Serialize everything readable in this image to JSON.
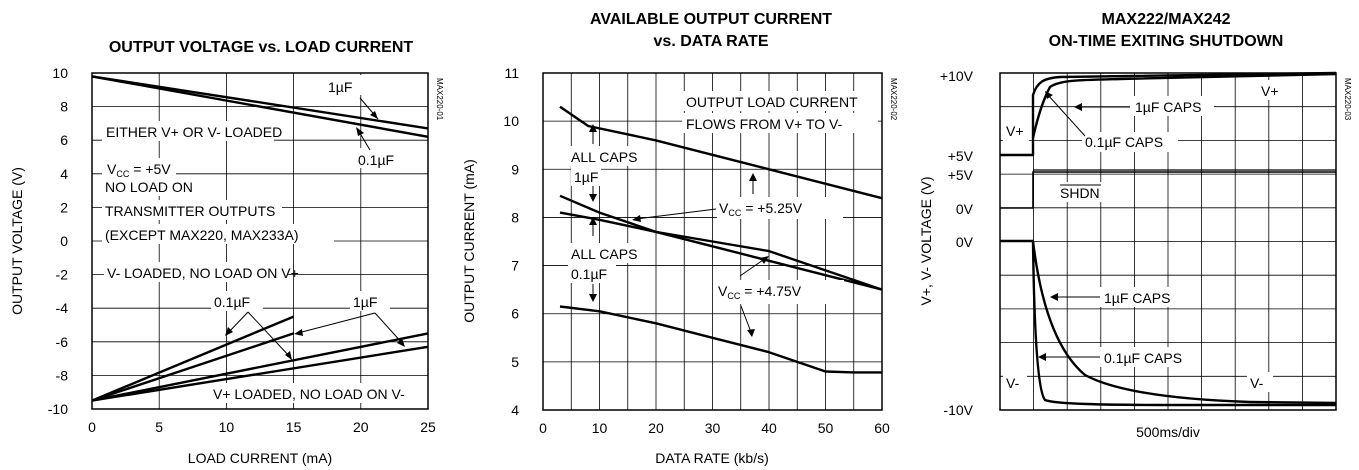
{
  "chart_data": [
    {
      "type": "line",
      "title": "OUTPUT VOLTAGE vs. LOAD CURRENT",
      "code": "MAX220-01",
      "xlabel": "LOAD CURRENT (mA)",
      "ylabel": "OUTPUT VOLTAGE (V)",
      "xlim": [
        0,
        25
      ],
      "ylim": [
        -10,
        10
      ],
      "x_ticks": [
        "0",
        "5",
        "10",
        "15",
        "20",
        "25"
      ],
      "y_ticks": [
        "10",
        "8",
        "6",
        "4",
        "2",
        "0",
        "-2",
        "-4",
        "-6",
        "-8",
        "-10"
      ],
      "grid": true,
      "series": [
        {
          "x": [
            0,
            25
          ],
          "y": [
            9.8,
            6.7
          ]
        },
        {
          "x": [
            0,
            25
          ],
          "y": [
            9.8,
            6.2
          ]
        },
        {
          "x": [
            0,
            15
          ],
          "y": [
            -9.5,
            -4.5
          ]
        },
        {
          "x": [
            0,
            15
          ],
          "y": [
            -9.5,
            -5.5
          ]
        },
        {
          "x": [
            0,
            25
          ],
          "y": [
            -9.5,
            -5.5
          ]
        },
        {
          "x": [
            0,
            25
          ],
          "y": [
            -9.5,
            -6.3
          ]
        }
      ],
      "annotations": {
        "cap1": "1µF",
        "cap2": "0.1µF",
        "either": "EITHER V+ OR V- LOADED",
        "vcc": "V",
        "vcc_sub": "CC",
        "vcc_val": " = +5V",
        "noload1": "NO LOAD ON",
        "noload2": "TRANSMITTER OUTPUTS",
        "noload3": "(EXCEPT MAX220, MAX233A)",
        "vminus": "V- LOADED, NO LOAD ON V+",
        "cap3": "0.1µF",
        "cap4": "1µF",
        "vplus": "V+ LOADED, NO LOAD ON V-"
      }
    },
    {
      "type": "line",
      "title": "AVAILABLE OUTPUT CURRENT",
      "title2": "vs. DATA RATE",
      "code": "MAX220-02",
      "xlabel": "DATA RATE (kb/s)",
      "ylabel": "OUTPUT CURRENT (mA)",
      "xlim": [
        0,
        60
      ],
      "ylim": [
        4,
        11
      ],
      "x_ticks": [
        "0",
        "10",
        "20",
        "30",
        "40",
        "50",
        "60"
      ],
      "y_ticks": [
        "11",
        "10",
        "9",
        "8",
        "7",
        "6",
        "5",
        "4"
      ],
      "grid": true,
      "series": [
        {
          "x": [
            3,
            8,
            20,
            40,
            60
          ],
          "y": [
            10.3,
            9.9,
            9.6,
            9.0,
            8.4
          ]
        },
        {
          "x": [
            3,
            10,
            20,
            30,
            40,
            50,
            60
          ],
          "y": [
            8.45,
            8.1,
            7.7,
            7.4,
            7.1,
            6.8,
            6.5
          ]
        },
        {
          "x": [
            3,
            10,
            20,
            30,
            40,
            50,
            60
          ],
          "y": [
            8.1,
            7.95,
            7.7,
            7.5,
            7.3,
            6.9,
            6.5
          ]
        },
        {
          "x": [
            3,
            10,
            20,
            30,
            40,
            50,
            55,
            60
          ],
          "y": [
            6.15,
            6.05,
            5.8,
            5.5,
            5.2,
            4.8,
            4.78,
            4.78
          ]
        }
      ],
      "annotations": {
        "flow1": "OUTPUT LOAD CURRENT",
        "flow2": "FLOWS FROM V+ TO V-",
        "allcaps1": "ALL CAPS",
        "onef": "1µF",
        "allcaps2": "ALL CAPS",
        "ptonef": "0.1µF",
        "vcc1": "V",
        "vcc1_sub": "CC",
        "vcc1_val": " = +5.25V",
        "vcc2": "V",
        "vcc2_sub": "CC",
        "vcc2_val": " = +4.75V"
      }
    },
    {
      "type": "line",
      "title": "MAX222/MAX242",
      "title2": "ON-TIME EXITING SHUTDOWN",
      "code": "MAX220-03",
      "xlabel": "500ms/div",
      "ylabel": "V+, V- VOLTAGE (V)",
      "grid": true,
      "y_markers": [
        "+10V",
        "+5V",
        "+5V",
        "0V",
        "0V",
        "-10V"
      ],
      "annotations": {
        "vplus": "V+",
        "caps1": "1µF CAPS",
        "caps2": "0.1µF CAPS",
        "vplus2": "V+",
        "shdn": "SHDN",
        "caps3": "1µF CAPS",
        "caps4": "0.1µF CAPS",
        "vminus": "V-",
        "vminus2": "V-"
      }
    }
  ]
}
